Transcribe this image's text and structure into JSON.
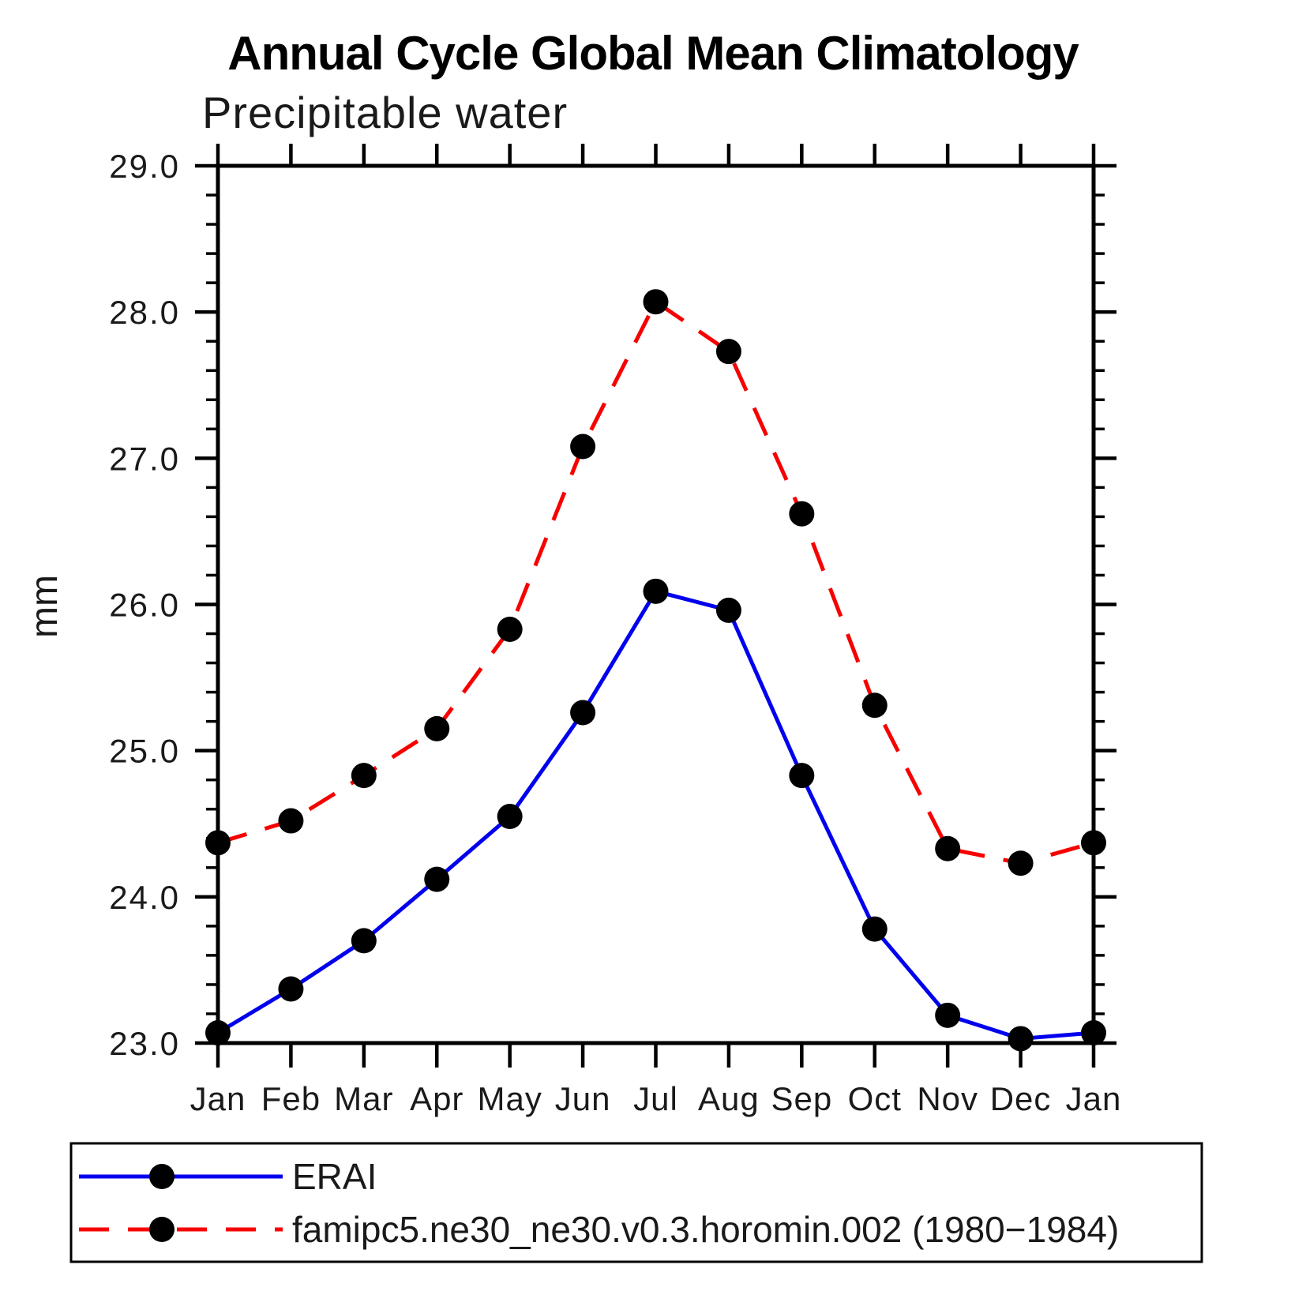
{
  "header": {
    "title": "Annual Cycle Global Mean Climatology"
  },
  "chart_data": {
    "type": "line",
    "title": "Annual Cycle Global Mean Climatology",
    "subtitle": "Precipitable water",
    "xlabel": "",
    "ylabel": "mm",
    "x_categories": [
      "Jan",
      "Feb",
      "Mar",
      "Apr",
      "May",
      "Jun",
      "Jul",
      "Aug",
      "Sep",
      "Oct",
      "Nov",
      "Dec",
      "Jan"
    ],
    "ylim": [
      23.0,
      29.0
    ],
    "ytick_major_labels": [
      "23.0",
      "24.0",
      "25.0",
      "26.0",
      "27.0",
      "28.0",
      "29.0"
    ],
    "ytick_major_values": [
      23.0,
      24.0,
      25.0,
      26.0,
      27.0,
      28.0,
      29.0
    ],
    "ytick_minor_step": 0.2,
    "grid": false,
    "legend_position": "bottom-left",
    "series": [
      {
        "name": "ERAI",
        "line_style": "solid",
        "color": "#0000ee",
        "marker": "circle",
        "marker_color": "#000000",
        "values": [
          23.07,
          23.37,
          23.7,
          24.12,
          24.55,
          25.26,
          26.09,
          25.96,
          24.83,
          23.78,
          23.19,
          23.03,
          23.07
        ]
      },
      {
        "name": "famipc5.ne30_ne30.v0.3.horomin.002 (1980−1984)",
        "line_style": "dashed",
        "color": "#f70000",
        "marker": "circle",
        "marker_color": "#000000",
        "values": [
          24.37,
          24.52,
          24.83,
          25.15,
          25.83,
          27.08,
          28.07,
          27.73,
          26.62,
          25.31,
          24.33,
          24.23,
          24.37
        ]
      }
    ],
    "axis_color": "#000000"
  }
}
